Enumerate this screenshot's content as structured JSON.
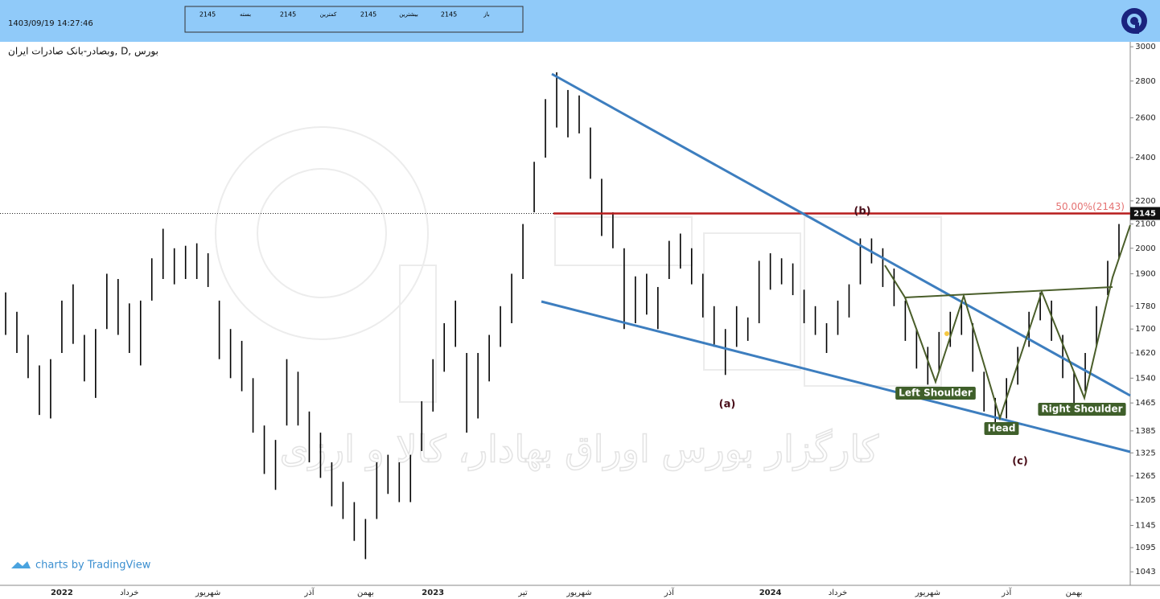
{
  "header": {
    "timestamp": "1403/09/19 14:27:46",
    "items": [
      {
        "value": "2145",
        "label": "بسته"
      },
      {
        "value": "2145",
        "label": "کمترین"
      },
      {
        "value": "2145",
        "label": "بیشترین"
      },
      {
        "value": "2145",
        "label": "باز"
      }
    ]
  },
  "chart_data": {
    "type": "ohlc",
    "title": "وبصادر-بانک صادرات ایران, D, بورس",
    "watermark": "کارگزار بورس اوراق بهادار، کالا و ارزی",
    "credit": "charts by TradingView",
    "current_price": 2145,
    "fib_label": "50.00%(2143)",
    "annotations": [
      "(a)",
      "(b)",
      "(c)",
      "Left Shoulder",
      "Head",
      "Right Shoulder"
    ],
    "log_scale": true,
    "ylim": [
      1015,
      3030
    ],
    "yticks": [
      3000,
      2800,
      2600,
      2400,
      2200,
      2100,
      2000,
      1900,
      1780,
      1700,
      1620,
      1540,
      1465,
      1385,
      1325,
      1265,
      1205,
      1145,
      1095,
      1043
    ],
    "categories": [
      null,
      null,
      null,
      null,
      null,
      "2022",
      null,
      null,
      null,
      null,
      null,
      "خرداد",
      null,
      null,
      null,
      null,
      null,
      null,
      "شهریور",
      null,
      null,
      null,
      null,
      null,
      null,
      null,
      null,
      "آذر",
      null,
      null,
      null,
      null,
      "بهمن",
      null,
      null,
      null,
      null,
      null,
      "2023",
      null,
      null,
      null,
      null,
      null,
      null,
      null,
      "تیر",
      null,
      null,
      null,
      null,
      "شهریور",
      null,
      null,
      null,
      null,
      null,
      null,
      null,
      "آذر",
      null,
      null,
      null,
      null,
      null,
      null,
      null,
      null,
      "2024",
      null,
      null,
      null,
      null,
      null,
      "خرداد",
      null,
      null,
      null,
      null,
      null,
      null,
      null,
      "شهریور",
      null,
      null,
      null,
      null,
      null,
      null,
      "آذر",
      null,
      null,
      null,
      null,
      null,
      "بهمن",
      null,
      null,
      null,
      null
    ],
    "high": [
      1830,
      1760,
      1680,
      1580,
      1600,
      1800,
      1860,
      1680,
      1700,
      1900,
      1880,
      1790,
      1800,
      1960,
      2080,
      2000,
      2010,
      2020,
      1980,
      1800,
      1700,
      1660,
      1540,
      1400,
      1360,
      1600,
      1560,
      1440,
      1380,
      1300,
      1250,
      1200,
      1160,
      1300,
      1320,
      1300,
      1320,
      1470,
      1600,
      1720,
      1800,
      1620,
      1620,
      1680,
      1780,
      1900,
      2100,
      2380,
      2700,
      2850,
      2750,
      2720,
      2550,
      2300,
      2150,
      2000,
      1890,
      1900,
      1850,
      2030,
      2060,
      2000,
      1900,
      1780,
      1700,
      1780,
      1740,
      1950,
      1980,
      1960,
      1940,
      1840,
      1780,
      1720,
      1800,
      1860,
      2040,
      2040,
      2000,
      1920,
      1800,
      1700,
      1640,
      1690,
      1760,
      1800,
      1720,
      1560,
      1480,
      1540,
      1640,
      1760,
      1830,
      1800,
      1680,
      1560,
      1620,
      1780,
      1950,
      2100
    ],
    "low": [
      1680,
      1620,
      1540,
      1430,
      1420,
      1620,
      1650,
      1530,
      1480,
      1700,
      1680,
      1620,
      1580,
      1800,
      1880,
      1860,
      1880,
      1880,
      1850,
      1600,
      1540,
      1500,
      1380,
      1270,
      1230,
      1400,
      1400,
      1300,
      1260,
      1190,
      1160,
      1110,
      1070,
      1160,
      1220,
      1200,
      1200,
      1330,
      1440,
      1560,
      1640,
      1380,
      1420,
      1530,
      1640,
      1720,
      1880,
      2150,
      2400,
      2550,
      2500,
      2520,
      2300,
      2050,
      2000,
      1700,
      1720,
      1750,
      1700,
      1880,
      1920,
      1860,
      1740,
      1640,
      1550,
      1640,
      1660,
      1720,
      1840,
      1860,
      1820,
      1720,
      1680,
      1620,
      1680,
      1740,
      1860,
      1940,
      1850,
      1780,
      1660,
      1570,
      1520,
      1560,
      1640,
      1680,
      1560,
      1440,
      1400,
      1420,
      1520,
      1640,
      1730,
      1660,
      1540,
      1460,
      1500,
      1640,
      1820,
      1960
    ],
    "color": "#000000",
    "line_color": "#3d7ebf",
    "level_color": "#b71c1c",
    "pattern_color": "#4a5e2a"
  }
}
